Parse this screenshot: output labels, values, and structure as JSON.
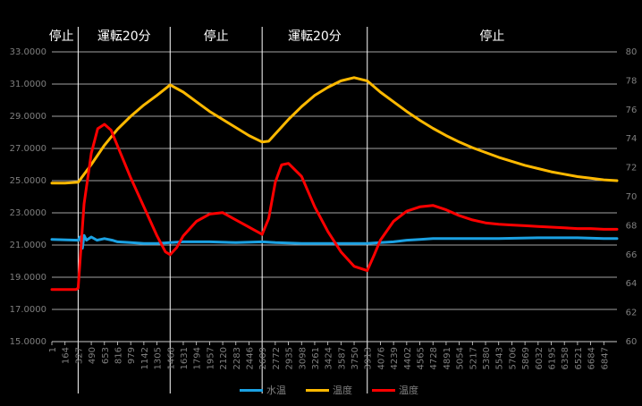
{
  "chart_data": {
    "type": "line",
    "phases": [
      {
        "label": "停止",
        "x": 1
      },
      {
        "label": "運転20分",
        "x": 600
      },
      {
        "label": "停止",
        "x": 1631
      },
      {
        "label": "運転20分",
        "x": 2772
      },
      {
        "label": "停止",
        "x": 3913
      }
    ],
    "phase_boundaries": [
      327,
      1468,
      2609,
      3913
    ],
    "x_ticks": [
      1,
      164,
      327,
      490,
      653,
      816,
      979,
      1142,
      1305,
      1468,
      1631,
      1794,
      1957,
      2120,
      2283,
      2446,
      2609,
      2772,
      2935,
      3098,
      3261,
      3424,
      3587,
      3750,
      3913,
      4076,
      4239,
      4402,
      4565,
      4728,
      4891,
      5054,
      5217,
      5380,
      5543,
      5706,
      5869,
      6032,
      6195,
      6358,
      6521,
      6684,
      6847
    ],
    "xlim": [
      1,
      7010
    ],
    "y_left": {
      "ylim": [
        15,
        33
      ],
      "ticks": [
        "15.0000",
        "17.0000",
        "19.0000",
        "21.0000",
        "23.0000",
        "25.0000",
        "27.0000",
        "29.0000",
        "31.0000",
        "33.0000"
      ]
    },
    "y_right": {
      "ylim": [
        60,
        80
      ],
      "ticks": [
        "60",
        "62",
        "64",
        "66",
        "68",
        "70",
        "72",
        "74",
        "76",
        "78",
        "80"
      ]
    },
    "grid": true,
    "legend_position": "bottom",
    "series": [
      {
        "name": "水温",
        "axis": "left",
        "color": "#1ba1e2",
        "points": [
          [
            1,
            21.35
          ],
          [
            327,
            21.3
          ],
          [
            350,
            21.5
          ],
          [
            380,
            20.8
          ],
          [
            400,
            21.6
          ],
          [
            430,
            21.3
          ],
          [
            490,
            21.5
          ],
          [
            560,
            21.3
          ],
          [
            653,
            21.4
          ],
          [
            750,
            21.3
          ],
          [
            816,
            21.2
          ],
          [
            979,
            21.15
          ],
          [
            1142,
            21.1
          ],
          [
            1305,
            21.1
          ],
          [
            1468,
            21.15
          ],
          [
            1631,
            21.2
          ],
          [
            1957,
            21.2
          ],
          [
            2283,
            21.15
          ],
          [
            2609,
            21.2
          ],
          [
            2772,
            21.15
          ],
          [
            3098,
            21.1
          ],
          [
            3424,
            21.1
          ],
          [
            3750,
            21.1
          ],
          [
            3913,
            21.1
          ],
          [
            4076,
            21.15
          ],
          [
            4239,
            21.2
          ],
          [
            4402,
            21.3
          ],
          [
            4565,
            21.35
          ],
          [
            4728,
            21.4
          ],
          [
            5054,
            21.4
          ],
          [
            5543,
            21.4
          ],
          [
            6032,
            21.45
          ],
          [
            6521,
            21.45
          ],
          [
            6847,
            21.4
          ],
          [
            7010,
            21.4
          ]
        ]
      },
      {
        "name": "温度",
        "axis": "left",
        "color": "#ffb900",
        "points": [
          [
            1,
            24.85
          ],
          [
            164,
            24.85
          ],
          [
            327,
            24.9
          ],
          [
            490,
            26.0
          ],
          [
            653,
            27.2
          ],
          [
            816,
            28.2
          ],
          [
            979,
            29.0
          ],
          [
            1142,
            29.7
          ],
          [
            1305,
            30.3
          ],
          [
            1468,
            30.95
          ],
          [
            1631,
            30.5
          ],
          [
            1794,
            29.9
          ],
          [
            1957,
            29.3
          ],
          [
            2120,
            28.8
          ],
          [
            2283,
            28.3
          ],
          [
            2446,
            27.8
          ],
          [
            2609,
            27.4
          ],
          [
            2690,
            27.45
          ],
          [
            2772,
            27.9
          ],
          [
            2935,
            28.8
          ],
          [
            3098,
            29.6
          ],
          [
            3261,
            30.3
          ],
          [
            3424,
            30.8
          ],
          [
            3587,
            31.2
          ],
          [
            3750,
            31.4
          ],
          [
            3913,
            31.2
          ],
          [
            4076,
            30.5
          ],
          [
            4239,
            29.9
          ],
          [
            4402,
            29.3
          ],
          [
            4565,
            28.75
          ],
          [
            4728,
            28.25
          ],
          [
            4891,
            27.8
          ],
          [
            5054,
            27.4
          ],
          [
            5217,
            27.05
          ],
          [
            5380,
            26.75
          ],
          [
            5543,
            26.45
          ],
          [
            5706,
            26.2
          ],
          [
            5869,
            25.95
          ],
          [
            6032,
            25.75
          ],
          [
            6195,
            25.55
          ],
          [
            6358,
            25.4
          ],
          [
            6521,
            25.25
          ],
          [
            6684,
            25.15
          ],
          [
            6847,
            25.05
          ],
          [
            7010,
            25.0
          ]
        ]
      },
      {
        "name": "温度",
        "axis": "right",
        "color": "#ff0000",
        "points": [
          [
            1,
            63.6
          ],
          [
            164,
            63.6
          ],
          [
            300,
            63.6
          ],
          [
            327,
            63.7
          ],
          [
            400,
            69.5
          ],
          [
            490,
            73.0
          ],
          [
            570,
            74.7
          ],
          [
            653,
            75.0
          ],
          [
            735,
            74.6
          ],
          [
            816,
            73.5
          ],
          [
            979,
            71.3
          ],
          [
            1142,
            69.3
          ],
          [
            1305,
            67.3
          ],
          [
            1410,
            66.2
          ],
          [
            1468,
            66.0
          ],
          [
            1550,
            66.5
          ],
          [
            1631,
            67.3
          ],
          [
            1794,
            68.3
          ],
          [
            1957,
            68.8
          ],
          [
            2120,
            68.9
          ],
          [
            2283,
            68.4
          ],
          [
            2446,
            67.9
          ],
          [
            2609,
            67.4
          ],
          [
            2690,
            68.5
          ],
          [
            2772,
            71.0
          ],
          [
            2850,
            72.2
          ],
          [
            2935,
            72.3
          ],
          [
            3098,
            71.4
          ],
          [
            3261,
            69.3
          ],
          [
            3424,
            67.6
          ],
          [
            3587,
            66.2
          ],
          [
            3750,
            65.2
          ],
          [
            3913,
            64.9
          ],
          [
            4000,
            66.0
          ],
          [
            4076,
            67.0
          ],
          [
            4239,
            68.3
          ],
          [
            4402,
            69.0
          ],
          [
            4565,
            69.3
          ],
          [
            4728,
            69.4
          ],
          [
            4891,
            69.1
          ],
          [
            5054,
            68.7
          ],
          [
            5217,
            68.4
          ],
          [
            5380,
            68.2
          ],
          [
            5543,
            68.1
          ],
          [
            5706,
            68.05
          ],
          [
            5869,
            68.0
          ],
          [
            6032,
            67.95
          ],
          [
            6195,
            67.9
          ],
          [
            6358,
            67.85
          ],
          [
            6521,
            67.8
          ],
          [
            6684,
            67.8
          ],
          [
            6847,
            67.75
          ],
          [
            7010,
            67.75
          ]
        ]
      }
    ]
  },
  "legend": [
    {
      "label": "水温",
      "color": "#1ba1e2"
    },
    {
      "label": "温度",
      "color": "#ffb900"
    },
    {
      "label": "温度",
      "color": "#ff0000"
    }
  ]
}
